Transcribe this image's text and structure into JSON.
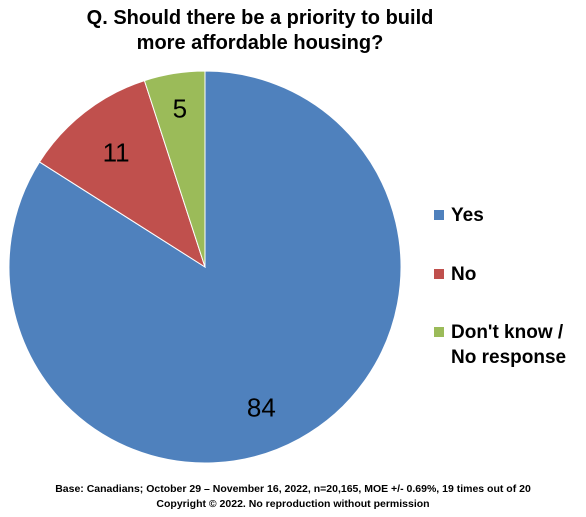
{
  "chart_data": {
    "type": "pie",
    "title_lines": [
      "Q. Should there be a priority to build",
      "more affordable housing?"
    ],
    "slices": [
      {
        "label": "Yes",
        "value": 84,
        "color": "#4F81BD"
      },
      {
        "label": "No",
        "value": 11,
        "color": "#C0504D"
      },
      {
        "label": "Don't know / No response",
        "value": 5,
        "color": "#9BBB59"
      }
    ],
    "data_labels": [
      "84",
      "11",
      "5"
    ],
    "legend": {
      "placement": "right",
      "items": [
        {
          "lines": [
            "Yes"
          ],
          "color": "#4F81BD"
        },
        {
          "lines": [
            "No"
          ],
          "color": "#C0504D"
        },
        {
          "lines": [
            "Don't know /",
            "No response"
          ],
          "color": "#9BBB59"
        }
      ]
    }
  },
  "footer": {
    "line1": "Base: Canadians; October 29 – November 16, 2022, n=20,165, MOE +/- 0.69%, 19 times out of 20",
    "line2": "Copyright © 2022. No reproduction without permission"
  }
}
